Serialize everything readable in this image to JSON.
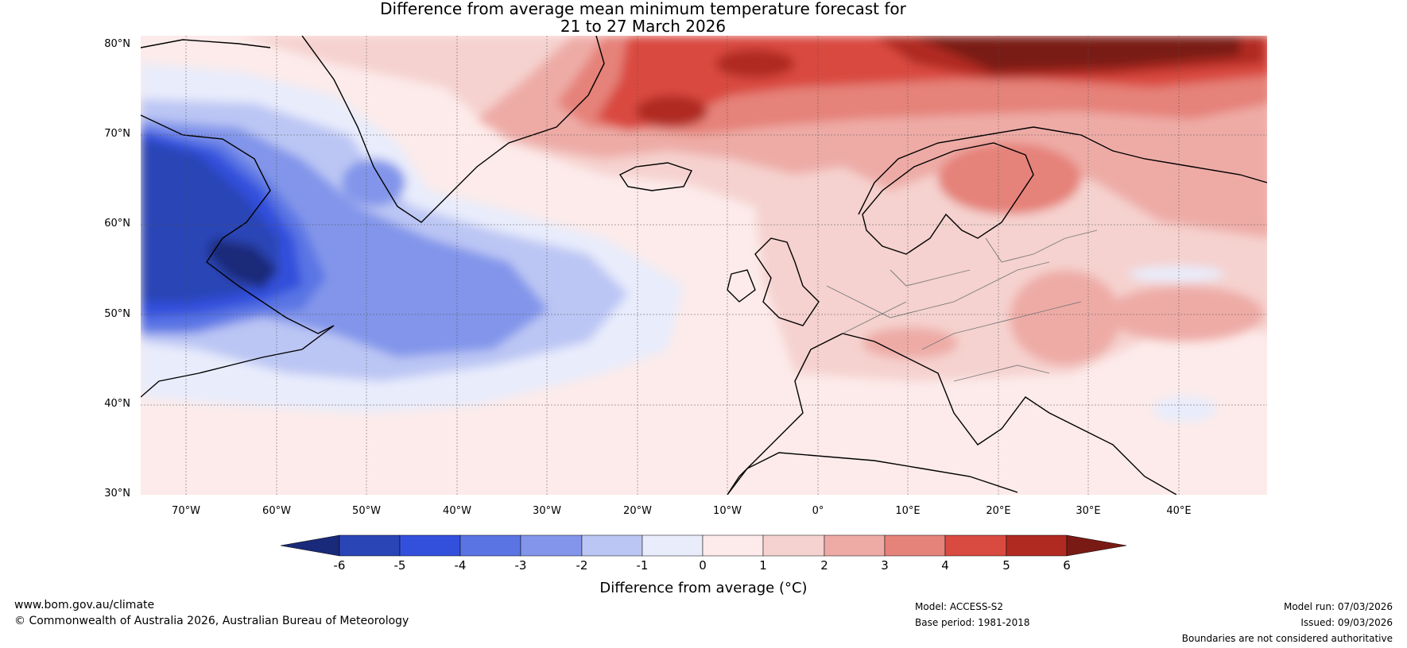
{
  "title_line1": "Difference from average mean minimum temperature forecast for",
  "title_line2": "21 to 27 March 2026",
  "lat_labels": [
    "80°N",
    "70°N",
    "60°N",
    "50°N",
    "40°N",
    "30°N"
  ],
  "lon_labels": [
    "70°W",
    "60°W",
    "50°W",
    "40°W",
    "30°W",
    "20°W",
    "10°W",
    "0°",
    "10°E",
    "20°E",
    "30°E",
    "40°E"
  ],
  "colorbar": {
    "ticks": [
      "-6",
      "-5",
      "-4",
      "-3",
      "-2",
      "-1",
      "0",
      "1",
      "2",
      "3",
      "4",
      "5",
      "6"
    ],
    "colors": [
      "#1a2a7a",
      "#2a45b5",
      "#3350dc",
      "#5a74e4",
      "#8295ea",
      "#bcc6f4",
      "#e8ecfb",
      "#fcebea",
      "#f5d2cf",
      "#eeaba6",
      "#e58279",
      "#d94a40",
      "#b02a22",
      "#7a1a14"
    ],
    "label": "Difference from average (°C)"
  },
  "footer": {
    "website": "www.bom.gov.au/climate",
    "copyright": "© Commonwealth of Australia 2026, Australian Bureau of Meteorology",
    "model": "Model: ACCESS-S2",
    "base_period": "Base period: 1981-2018",
    "model_run": "Model run: 07/03/2026",
    "issued": "Issued: 09/03/2026",
    "disclaimer": "Boundaries are not considered authoritative"
  },
  "colors": {
    "land_outline": "#000000",
    "border": "#777777",
    "grid": "#555555",
    "background": "#fcebea"
  }
}
